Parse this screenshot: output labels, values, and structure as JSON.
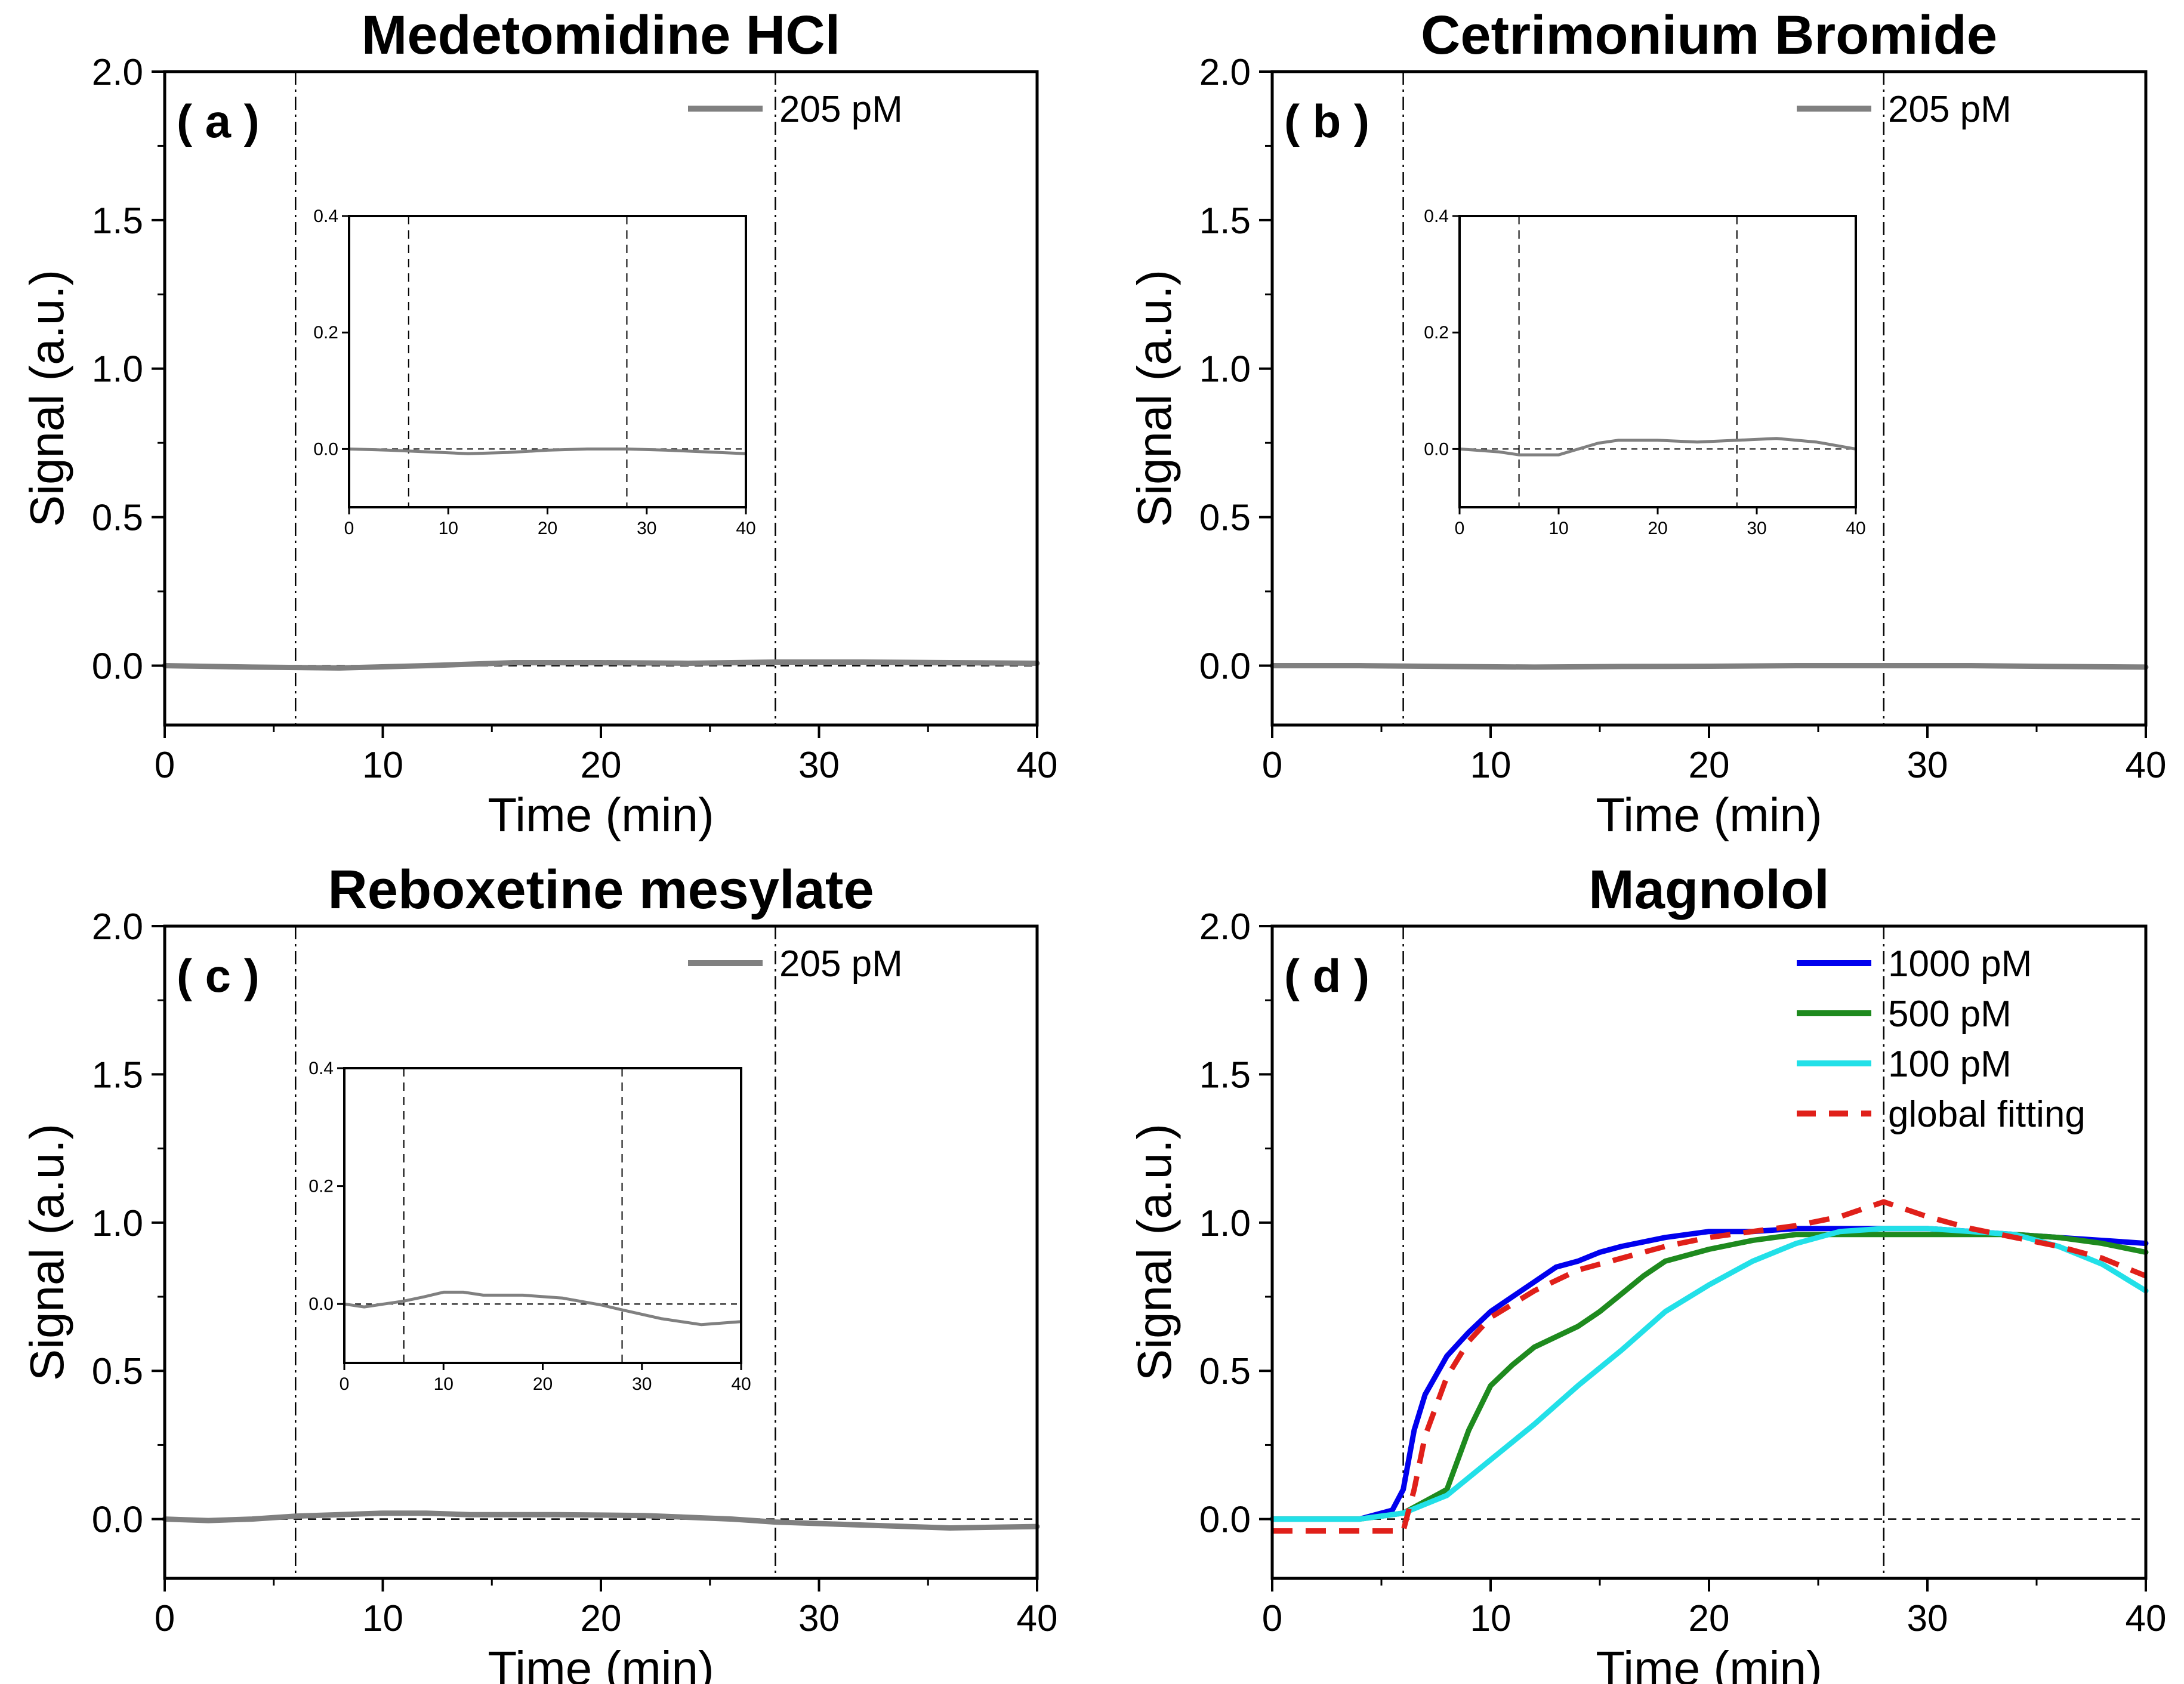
{
  "chart_data": [
    {
      "type": "line",
      "panel_label": "( a )",
      "title": "Medetomidine HCl",
      "xlabel": "Time (min)",
      "ylabel": "Signal (a.u.)",
      "xlim": [
        0,
        40
      ],
      "ylim": [
        -0.2,
        2.0
      ],
      "xticks": [
        "0",
        "10",
        "20",
        "30",
        "40"
      ],
      "yticks": [
        "0.0",
        "0.5",
        "1.0",
        "1.5",
        "2.0"
      ],
      "vlines": [
        6,
        28
      ],
      "hline": 0,
      "legend_position": "top-right",
      "series": [
        {
          "name": "205 pM",
          "color": "#808080",
          "style": "solid",
          "x": [
            0,
            4,
            8,
            12,
            16,
            20,
            24,
            28,
            32,
            36,
            40
          ],
          "y": [
            0.0,
            -0.005,
            -0.008,
            0.0,
            0.01,
            0.01,
            0.008,
            0.012,
            0.012,
            0.01,
            0.008
          ]
        }
      ],
      "inset": {
        "xlim": [
          0,
          40
        ],
        "ylim": [
          -0.1,
          0.4
        ],
        "xticks": [
          "0",
          "10",
          "20",
          "30",
          "40"
        ],
        "yticks": [
          "0.0",
          "0.2",
          "0.4"
        ],
        "series": [
          {
            "name": "205 pM",
            "color": "#808080",
            "x": [
              0,
              4,
              8,
              12,
              16,
              20,
              24,
              28,
              32,
              36,
              40
            ],
            "y": [
              0.0,
              -0.002,
              -0.005,
              -0.008,
              -0.006,
              -0.002,
              0.0,
              0.0,
              -0.002,
              -0.005,
              -0.008
            ]
          }
        ]
      }
    },
    {
      "type": "line",
      "panel_label": "( b )",
      "title": "Cetrimonium Bromide",
      "xlabel": "Time (min)",
      "ylabel": "Signal (a.u.)",
      "xlim": [
        0,
        40
      ],
      "ylim": [
        -0.2,
        2.0
      ],
      "xticks": [
        "0",
        "10",
        "20",
        "30",
        "40"
      ],
      "yticks": [
        "0.0",
        "0.5",
        "1.0",
        "1.5",
        "2.0"
      ],
      "vlines": [
        6,
        28
      ],
      "hline": 0,
      "legend_position": "top-right",
      "series": [
        {
          "name": "205 pM",
          "color": "#808080",
          "style": "solid",
          "x": [
            0,
            4,
            8,
            12,
            16,
            20,
            24,
            28,
            32,
            36,
            40
          ],
          "y": [
            0.0,
            0.0,
            -0.003,
            -0.005,
            -0.003,
            -0.002,
            0.0,
            0.0,
            0.0,
            -0.003,
            -0.005
          ]
        }
      ],
      "inset": {
        "xlim": [
          0,
          40
        ],
        "ylim": [
          -0.1,
          0.4
        ],
        "xticks": [
          "0",
          "10",
          "20",
          "30",
          "40"
        ],
        "yticks": [
          "0.0",
          "0.2",
          "0.4"
        ],
        "series": [
          {
            "name": "205 pM",
            "color": "#808080",
            "x": [
              0,
              4,
              6,
              8,
              10,
              12,
              14,
              16,
              20,
              24,
              28,
              32,
              36,
              40
            ],
            "y": [
              0.0,
              -0.005,
              -0.01,
              -0.01,
              -0.01,
              0.0,
              0.01,
              0.015,
              0.015,
              0.012,
              0.015,
              0.018,
              0.012,
              0.0
            ]
          }
        ]
      }
    },
    {
      "type": "line",
      "panel_label": "( c )",
      "title": "Reboxetine mesylate",
      "xlabel": "Time (min)",
      "ylabel": "Signal (a.u.)",
      "xlim": [
        0,
        40
      ],
      "ylim": [
        -0.2,
        2.0
      ],
      "xticks": [
        "0",
        "10",
        "20",
        "30",
        "40"
      ],
      "yticks": [
        "0.0",
        "0.5",
        "1.0",
        "1.5",
        "2.0"
      ],
      "vlines": [
        6,
        28
      ],
      "hline": 0,
      "legend_position": "top-right",
      "series": [
        {
          "name": "205 pM",
          "color": "#808080",
          "style": "solid",
          "x": [
            0,
            2,
            4,
            6,
            8,
            10,
            12,
            14,
            18,
            22,
            26,
            28,
            32,
            36,
            40
          ],
          "y": [
            0.0,
            -0.005,
            0.0,
            0.01,
            0.015,
            0.02,
            0.02,
            0.015,
            0.015,
            0.012,
            0.0,
            -0.01,
            -0.02,
            -0.03,
            -0.025
          ]
        }
      ],
      "inset": {
        "xlim": [
          0,
          40
        ],
        "ylim": [
          -0.1,
          0.4
        ],
        "xticks": [
          "0",
          "10",
          "20",
          "30",
          "40"
        ],
        "yticks": [
          "0.0",
          "0.2",
          "0.4"
        ],
        "series": [
          {
            "name": "205 pM",
            "color": "#808080",
            "x": [
              0,
              2,
              4,
              6,
              8,
              10,
              12,
              14,
              18,
              22,
              26,
              28,
              32,
              36,
              40
            ],
            "y": [
              0.0,
              -0.005,
              0.0,
              0.005,
              0.012,
              0.02,
              0.02,
              0.015,
              0.015,
              0.01,
              -0.002,
              -0.01,
              -0.025,
              -0.035,
              -0.03
            ]
          }
        ]
      }
    },
    {
      "type": "line",
      "panel_label": "( d )",
      "title": "Magnolol",
      "xlabel": "Time (min)",
      "ylabel": "Signal (a.u.)",
      "xlim": [
        0,
        40
      ],
      "ylim": [
        -0.2,
        2.0
      ],
      "xticks": [
        "0",
        "10",
        "20",
        "30",
        "40"
      ],
      "yticks": [
        "0.0",
        "0.5",
        "1.0",
        "1.5",
        "2.0"
      ],
      "vlines": [
        6,
        28
      ],
      "hline": 0,
      "legend_position": "top-right",
      "series": [
        {
          "name": "1000 pM",
          "color": "#0000ee",
          "style": "solid",
          "x": [
            0,
            4,
            5.5,
            6,
            6.5,
            7,
            8,
            9,
            10,
            11,
            12,
            13,
            14,
            15,
            16,
            18,
            20,
            22,
            24,
            26,
            28,
            30,
            32,
            34,
            36,
            38,
            40
          ],
          "y": [
            0.0,
            0.0,
            0.03,
            0.1,
            0.3,
            0.42,
            0.55,
            0.63,
            0.7,
            0.75,
            0.8,
            0.85,
            0.87,
            0.9,
            0.92,
            0.95,
            0.97,
            0.97,
            0.98,
            0.98,
            0.98,
            0.98,
            0.97,
            0.96,
            0.95,
            0.94,
            0.93
          ]
        },
        {
          "name": "500 pM",
          "color": "#1e8a1e",
          "style": "solid",
          "x": [
            0,
            4,
            6,
            8,
            9,
            10,
            11,
            12,
            14,
            15,
            16,
            17,
            18,
            20,
            22,
            24,
            26,
            28,
            30,
            32,
            34,
            36,
            38,
            40
          ],
          "y": [
            0.0,
            0.0,
            0.02,
            0.1,
            0.3,
            0.45,
            0.52,
            0.58,
            0.65,
            0.7,
            0.76,
            0.82,
            0.87,
            0.91,
            0.94,
            0.96,
            0.96,
            0.96,
            0.96,
            0.96,
            0.96,
            0.95,
            0.93,
            0.9
          ]
        },
        {
          "name": "100 pM",
          "color": "#22e0e8",
          "style": "solid",
          "x": [
            0,
            4,
            6,
            8,
            10,
            12,
            14,
            16,
            18,
            20,
            22,
            24,
            26,
            28,
            30,
            32,
            34,
            36,
            38,
            40
          ],
          "y": [
            0.0,
            0.0,
            0.02,
            0.08,
            0.2,
            0.32,
            0.45,
            0.57,
            0.7,
            0.79,
            0.87,
            0.93,
            0.97,
            0.98,
            0.98,
            0.97,
            0.96,
            0.92,
            0.86,
            0.77
          ]
        },
        {
          "name": "global fitting",
          "color": "#e0201a",
          "style": "dashed",
          "x": [
            0,
            4,
            6,
            6.5,
            7,
            8,
            9,
            10,
            12,
            14,
            16,
            18,
            20,
            22,
            24,
            26,
            28,
            30,
            32,
            34,
            36,
            38,
            40
          ],
          "y": [
            -0.04,
            -0.04,
            -0.04,
            0.1,
            0.28,
            0.48,
            0.6,
            0.68,
            0.77,
            0.84,
            0.88,
            0.92,
            0.95,
            0.97,
            0.99,
            1.02,
            1.07,
            1.02,
            0.98,
            0.95,
            0.92,
            0.88,
            0.82
          ]
        }
      ]
    }
  ]
}
